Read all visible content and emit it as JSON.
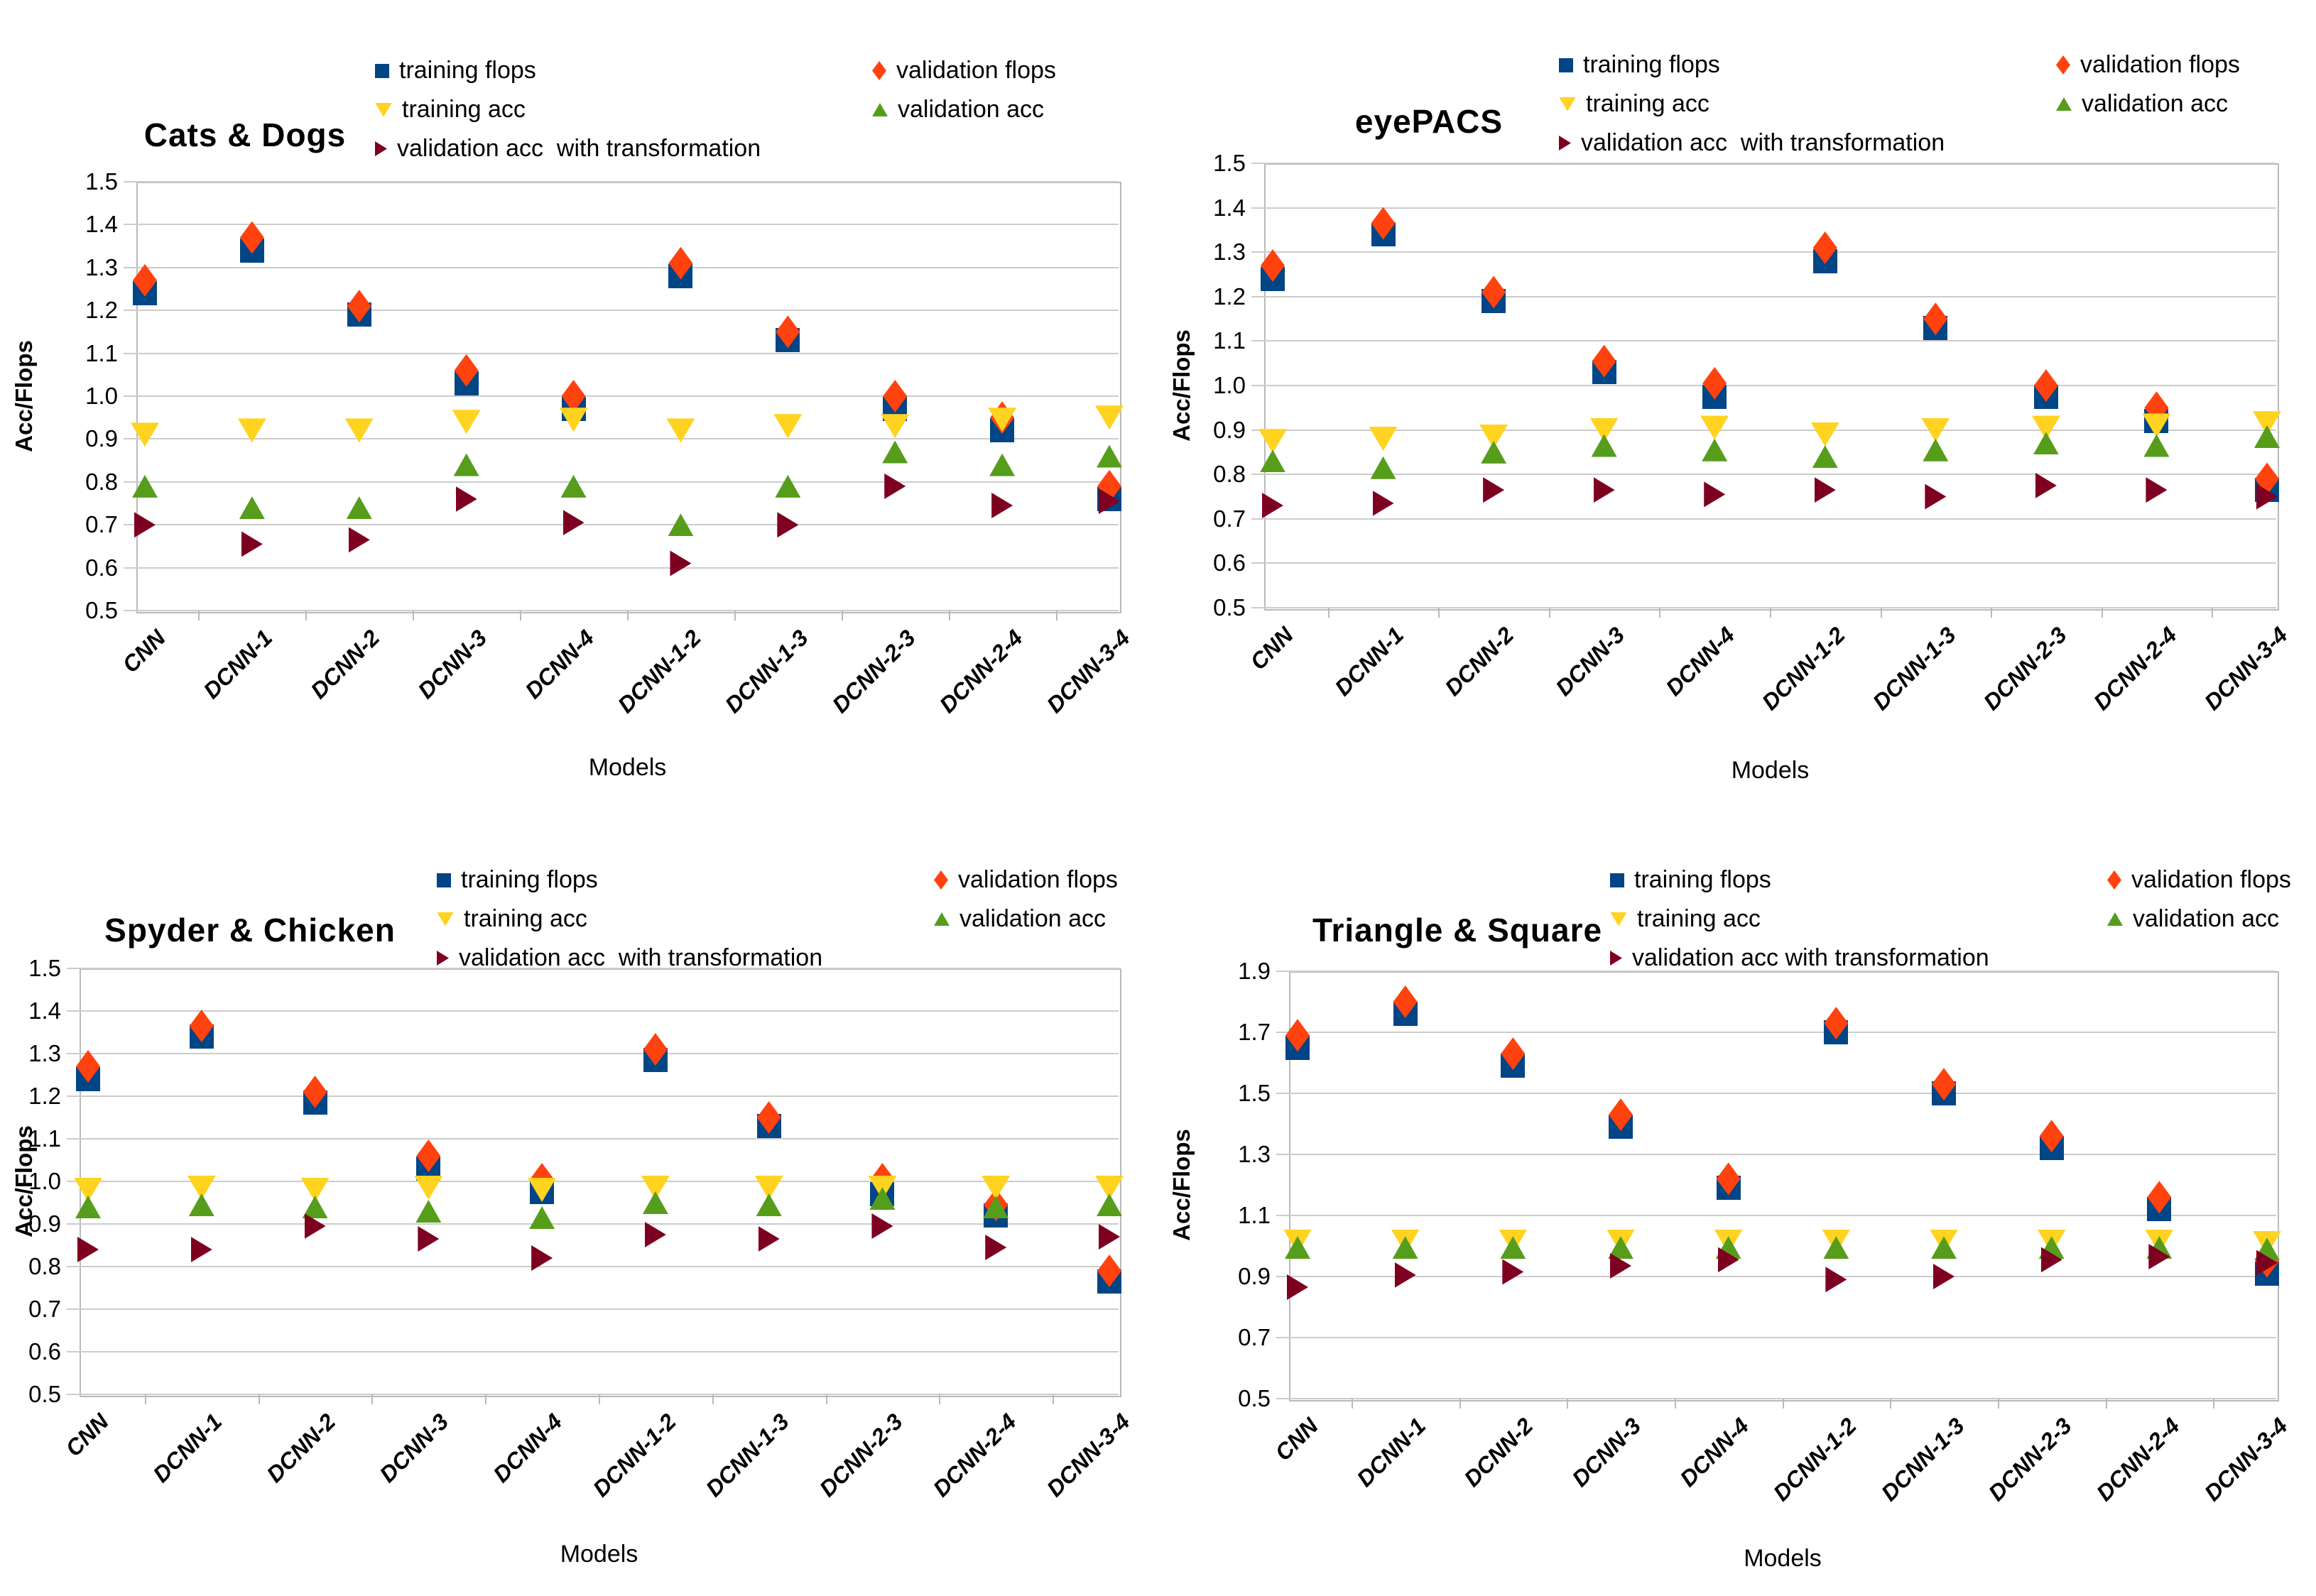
{
  "figure": {
    "y_axis_title": "Acc/Flops",
    "x_axis_title": "Models",
    "series_colors": {
      "training_flops": "#004586",
      "validation_flops": "#ff420e",
      "training_acc": "#ffd320",
      "validation_acc": "#579d1c",
      "validation_acc_transform": "#7e0021"
    },
    "gridline_color": "#cccccc",
    "border_color": "#b9b9b9"
  },
  "chart_data": [
    {
      "type": "scatter",
      "title": "Cats & Dogs",
      "xlabel": "Models",
      "ylabel": "Acc/Flops",
      "ylim": [
        0.5,
        1.5
      ],
      "ytick_step": 0.1,
      "grid": true,
      "legend_position": "top",
      "categories": [
        "CNN",
        "DCNN-1",
        "DCNN-2",
        "DCNN-3",
        "DCNN-4",
        "DCNN-1-2",
        "DCNN-1-3",
        "DCNN-2-3",
        "DCNN-2-4",
        "DCNN-3-4"
      ],
      "series": [
        {
          "name": "training flops",
          "marker": "square",
          "color": "#004586",
          "values": [
            1.24,
            1.34,
            1.19,
            1.03,
            0.97,
            1.28,
            1.13,
            0.97,
            0.92,
            0.76
          ]
        },
        {
          "name": "validation flops",
          "marker": "diamond",
          "color": "#ff420e",
          "values": [
            1.27,
            1.37,
            1.21,
            1.06,
            1.0,
            1.31,
            1.15,
            1.0,
            0.95,
            0.79
          ]
        },
        {
          "name": "training acc",
          "marker": "triangle-down",
          "color": "#ffd320",
          "values": [
            0.91,
            0.92,
            0.92,
            0.94,
            0.945,
            0.92,
            0.93,
            0.93,
            0.945,
            0.95
          ]
        },
        {
          "name": "validation acc",
          "marker": "triangle-up",
          "color": "#579d1c",
          "values": [
            0.79,
            0.74,
            0.74,
            0.84,
            0.79,
            0.7,
            0.79,
            0.87,
            0.84,
            0.86
          ]
        },
        {
          "name": "validation acc  with transformation",
          "marker": "triangle-right",
          "color": "#7e0021",
          "values": [
            0.7,
            0.655,
            0.665,
            0.76,
            0.705,
            0.61,
            0.7,
            0.79,
            0.745,
            0.755
          ]
        }
      ]
    },
    {
      "type": "scatter",
      "title": "eyePACS",
      "xlabel": "Models",
      "ylabel": "Acc/Flops",
      "ylim": [
        0.5,
        1.5
      ],
      "ytick_step": 0.1,
      "grid": true,
      "legend_position": "top",
      "categories": [
        "CNN",
        "DCNN-1",
        "DCNN-2",
        "DCNN-3",
        "DCNN-4",
        "DCNN-1-2",
        "DCNN-1-3",
        "DCNN-2-3",
        "DCNN-2-4",
        "DCNN-3-4"
      ],
      "series": [
        {
          "name": "training flops",
          "marker": "square",
          "color": "#004586",
          "values": [
            1.24,
            1.34,
            1.19,
            1.03,
            0.975,
            1.28,
            1.13,
            0.975,
            0.92,
            0.765
          ]
        },
        {
          "name": "validation flops",
          "marker": "diamond",
          "color": "#ff420e",
          "values": [
            1.27,
            1.365,
            1.21,
            1.055,
            1.005,
            1.31,
            1.15,
            1.0,
            0.95,
            0.79
          ]
        },
        {
          "name": "training acc",
          "marker": "triangle-down",
          "color": "#ffd320",
          "values": [
            0.875,
            0.88,
            0.885,
            0.9,
            0.905,
            0.89,
            0.9,
            0.905,
            0.91,
            0.915
          ]
        },
        {
          "name": "validation acc",
          "marker": "triangle-up",
          "color": "#579d1c",
          "values": [
            0.83,
            0.815,
            0.85,
            0.865,
            0.855,
            0.84,
            0.855,
            0.87,
            0.865,
            0.885
          ]
        },
        {
          "name": "validation acc  with transformation",
          "marker": "triangle-right",
          "color": "#7e0021",
          "values": [
            0.73,
            0.735,
            0.765,
            0.765,
            0.755,
            0.765,
            0.75,
            0.775,
            0.765,
            0.75
          ]
        }
      ]
    },
    {
      "type": "scatter",
      "title": "Spyder & Chicken",
      "xlabel": "Models",
      "ylabel": "Acc/Flops",
      "ylim": [
        0.5,
        1.5
      ],
      "ytick_step": 0.1,
      "grid": true,
      "legend_position": "top",
      "categories": [
        "CNN",
        "DCNN-1",
        "DCNN-2",
        "DCNN-3",
        "DCNN-4",
        "DCNN-1-2",
        "DCNN-1-3",
        "DCNN-2-3",
        "DCNN-2-4",
        "DCNN-3-4"
      ],
      "series": [
        {
          "name": "training flops",
          "marker": "square",
          "color": "#004586",
          "values": [
            1.24,
            1.34,
            1.185,
            1.03,
            0.975,
            1.285,
            1.13,
            0.97,
            0.92,
            0.765
          ]
        },
        {
          "name": "validation flops",
          "marker": "diamond",
          "color": "#ff420e",
          "values": [
            1.27,
            1.365,
            1.21,
            1.06,
            1.005,
            1.31,
            1.15,
            1.005,
            0.945,
            0.79
          ]
        },
        {
          "name": "training acc",
          "marker": "triangle-down",
          "color": "#ffd320",
          "values": [
            0.98,
            0.985,
            0.98,
            0.985,
            0.98,
            0.985,
            0.985,
            0.985,
            0.985,
            0.985
          ]
        },
        {
          "name": "validation acc",
          "marker": "triangle-up",
          "color": "#579d1c",
          "values": [
            0.94,
            0.945,
            0.94,
            0.93,
            0.915,
            0.95,
            0.945,
            0.96,
            0.94,
            0.945
          ]
        },
        {
          "name": "validation acc  with transformation",
          "marker": "triangle-right",
          "color": "#7e0021",
          "values": [
            0.84,
            0.84,
            0.895,
            0.865,
            0.82,
            0.875,
            0.865,
            0.895,
            0.845,
            0.87
          ]
        }
      ]
    },
    {
      "type": "scatter",
      "title": "Triangle & Square",
      "xlabel": "Models",
      "ylabel": "Acc/Flops",
      "ylim": [
        0.5,
        1.9
      ],
      "ytick_step": 0.2,
      "grid": true,
      "legend_position": "top",
      "categories": [
        "CNN",
        "DCNN-1",
        "DCNN-2",
        "DCNN-3",
        "DCNN-4",
        "DCNN-1-2",
        "DCNN-1-3",
        "DCNN-2-3",
        "DCNN-2-4",
        "DCNN-3-4"
      ],
      "series": [
        {
          "name": "training flops",
          "marker": "square",
          "color": "#004586",
          "values": [
            1.65,
            1.76,
            1.59,
            1.39,
            1.19,
            1.7,
            1.5,
            1.32,
            1.12,
            0.91
          ]
        },
        {
          "name": "validation flops",
          "marker": "diamond",
          "color": "#ff420e",
          "values": [
            1.69,
            1.8,
            1.63,
            1.43,
            1.22,
            1.73,
            1.53,
            1.36,
            1.16,
            0.95
          ]
        },
        {
          "name": "training acc",
          "marker": "triangle-down",
          "color": "#ffd320",
          "values": [
            1.015,
            1.015,
            1.015,
            1.015,
            1.015,
            1.015,
            1.015,
            1.015,
            1.015,
            1.01
          ]
        },
        {
          "name": "validation acc",
          "marker": "triangle-up",
          "color": "#579d1c",
          "values": [
            0.995,
            0.995,
            0.995,
            0.995,
            0.995,
            0.995,
            0.995,
            0.995,
            0.995,
            0.99
          ]
        },
        {
          "name": "validation acc with transformation",
          "marker": "triangle-right",
          "color": "#7e0021",
          "values": [
            0.865,
            0.905,
            0.915,
            0.935,
            0.955,
            0.89,
            0.9,
            0.955,
            0.965,
            0.945
          ]
        }
      ]
    }
  ]
}
